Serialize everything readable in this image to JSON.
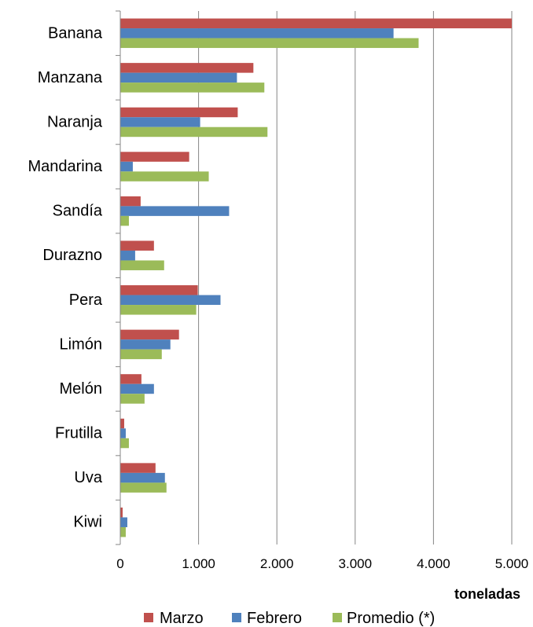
{
  "chart_data": {
    "type": "bar",
    "orientation": "horizontal",
    "categories": [
      "Banana",
      "Manzana",
      "Naranja",
      "Mandarina",
      "Sandía",
      "Durazno",
      "Pera",
      "Limón",
      "Melón",
      "Frutilla",
      "Uva",
      "Kiwi"
    ],
    "series": [
      {
        "name": "Marzo",
        "color": "#C0504D",
        "values": [
          5000,
          1700,
          1500,
          880,
          260,
          430,
          990,
          750,
          270,
          50,
          450,
          30
        ]
      },
      {
        "name": "Febrero",
        "color": "#4F81BD",
        "values": [
          3490,
          1490,
          1020,
          160,
          1390,
          190,
          1280,
          640,
          430,
          70,
          570,
          90
        ]
      },
      {
        "name": "Promedio (*)",
        "color": "#9BBB59",
        "values": [
          3810,
          1840,
          1880,
          1130,
          110,
          560,
          970,
          530,
          310,
          110,
          590,
          70
        ]
      }
    ],
    "xlim": [
      0,
      5000
    ],
    "xticks": [
      0,
      1000,
      2000,
      3000,
      4000,
      5000
    ],
    "xtick_labels": [
      "0",
      "1.000",
      "2.000",
      "3.000",
      "4.000",
      "5.000"
    ],
    "xlabel": "toneladas",
    "ylabel": "",
    "title": "",
    "grid": "vertical",
    "legend_position": "bottom"
  }
}
